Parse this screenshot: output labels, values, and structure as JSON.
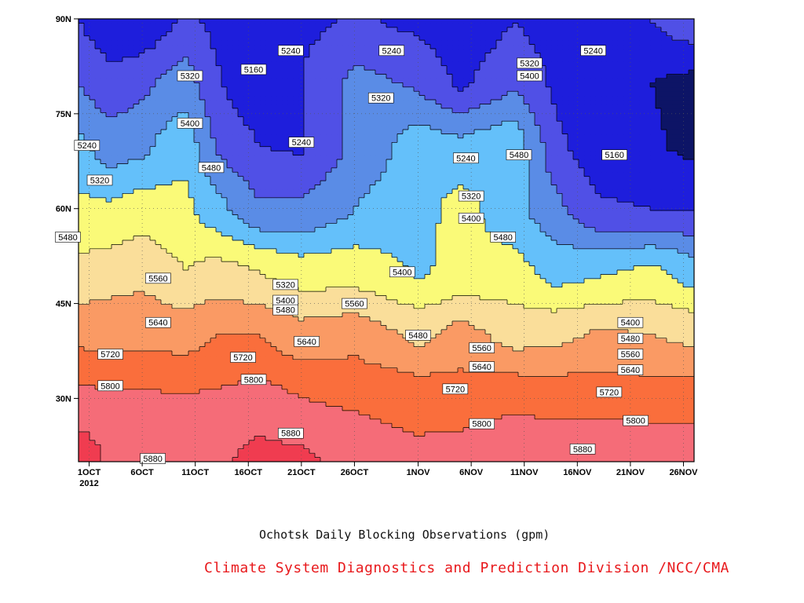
{
  "chart_data": {
    "type": "heatmap",
    "title": "Ochotsk Daily Blocking Observations (gpm)",
    "credit": "Climate System Diagnostics and Prediction Division /NCC/CMA",
    "credit_color": "#e8191c",
    "y_ticks": [
      "30N",
      "45N",
      "60N",
      "75N",
      "90N"
    ],
    "y_tick_values": [
      30,
      45,
      60,
      75,
      90
    ],
    "ylim": [
      20,
      90
    ],
    "x_ticks": [
      {
        "label": "1OCT",
        "sub": "2012",
        "day": 1
      },
      {
        "label": "6OCT",
        "sub": "",
        "day": 6
      },
      {
        "label": "11OCT",
        "sub": "",
        "day": 11
      },
      {
        "label": "16OCT",
        "sub": "",
        "day": 16
      },
      {
        "label": "21OCT",
        "sub": "",
        "day": 21
      },
      {
        "label": "26OCT",
        "sub": "",
        "day": 26
      },
      {
        "label": "1NOV",
        "sub": "",
        "day": 32
      },
      {
        "label": "6NOV",
        "sub": "",
        "day": 37
      },
      {
        "label": "11NOV",
        "sub": "",
        "day": 42
      },
      {
        "label": "16NOV",
        "sub": "",
        "day": 47
      },
      {
        "label": "21NOV",
        "sub": "",
        "day": 52
      },
      {
        "label": "26NOV",
        "sub": "",
        "day": 57
      }
    ],
    "xlim": [
      0,
      58
    ],
    "grid": true,
    "levels": [
      5160,
      5240,
      5320,
      5400,
      5480,
      5560,
      5640,
      5720,
      5800,
      5880
    ],
    "level_colors": [
      "#0d1466",
      "#1e1edc",
      "#5050e6",
      "#5a8ce6",
      "#64c0fa",
      "#fafa78",
      "#fade9a",
      "#fa9a64",
      "#fa6e3c",
      "#f56c78",
      "#f03c50"
    ],
    "field": [
      {
        "day": 0,
        "profile": [
          5950,
          5820,
          5700,
          5580,
          5500,
          5420,
          5320,
          5240
        ]
      },
      {
        "day": 3,
        "profile": [
          5860,
          5810,
          5700,
          5600,
          5490,
          5360,
          5260,
          5180
        ]
      },
      {
        "day": 6,
        "profile": [
          5880,
          5810,
          5700,
          5620,
          5520,
          5380,
          5300,
          5160
        ]
      },
      {
        "day": 10,
        "profile": [
          5850,
          5805,
          5690,
          5560,
          5500,
          5460,
          5360,
          5260
        ]
      },
      {
        "day": 13,
        "profile": [
          5860,
          5810,
          5720,
          5590,
          5430,
          5310,
          5250,
          5220
        ]
      },
      {
        "day": 17,
        "profile": [
          5910,
          5830,
          5720,
          5560,
          5330,
          5240,
          5170,
          5230
        ]
      },
      {
        "day": 21,
        "profile": [
          5900,
          5800,
          5670,
          5520,
          5330,
          5230,
          5240,
          5220
        ]
      },
      {
        "day": 26,
        "profile": [
          5850,
          5790,
          5690,
          5530,
          5400,
          5340,
          5340,
          5250
        ]
      },
      {
        "day": 32,
        "profile": [
          5820,
          5770,
          5620,
          5470,
          5450,
          5440,
          5310,
          5220
        ]
      },
      {
        "day": 36,
        "profile": [
          5840,
          5760,
          5670,
          5500,
          5510,
          5420,
          5220,
          5170
        ]
      },
      {
        "day": 41,
        "profile": [
          5880,
          5780,
          5610,
          5510,
          5430,
          5460,
          5310,
          5240
        ]
      },
      {
        "day": 45,
        "profile": [
          5870,
          5770,
          5620,
          5450,
          5340,
          5260,
          5220,
          5200
        ]
      },
      {
        "day": 49,
        "profile": [
          5870,
          5770,
          5650,
          5470,
          5250,
          5190,
          5170,
          5180
        ]
      },
      {
        "day": 54,
        "profile": [
          5880,
          5760,
          5640,
          5500,
          5240,
          5170,
          5160,
          5240
        ]
      },
      {
        "day": 58,
        "profile": [
          5870,
          5760,
          5620,
          5440,
          5240,
          5140,
          5140,
          5300
        ]
      }
    ],
    "field_lats": [
      20,
      30,
      40,
      50,
      60,
      70,
      80,
      90
    ],
    "contour_labels": [
      {
        "text": "5240",
        "day": 20,
        "lat": 85
      },
      {
        "text": "5160",
        "day": 16.5,
        "lat": 82
      },
      {
        "text": "5320",
        "day": 10.5,
        "lat": 81
      },
      {
        "text": "5240",
        "day": 0.8,
        "lat": 70
      },
      {
        "text": "5400",
        "day": 10.5,
        "lat": 73.5
      },
      {
        "text": "5240",
        "day": 21,
        "lat": 70.5
      },
      {
        "text": "5320",
        "day": 2,
        "lat": 64.5
      },
      {
        "text": "5480",
        "day": 12.5,
        "lat": 66.5
      },
      {
        "text": "5480",
        "day": -1,
        "lat": 55.5
      },
      {
        "text": "5560",
        "day": 7.5,
        "lat": 49
      },
      {
        "text": "5640",
        "day": 7.5,
        "lat": 42
      },
      {
        "text": "5720",
        "day": 3,
        "lat": 37
      },
      {
        "text": "5720",
        "day": 15.5,
        "lat": 36.5
      },
      {
        "text": "5800",
        "day": 3,
        "lat": 32
      },
      {
        "text": "5800",
        "day": 16.5,
        "lat": 33
      },
      {
        "text": "5640",
        "day": 21.5,
        "lat": 39
      },
      {
        "text": "5880",
        "day": 20,
        "lat": 24.5
      },
      {
        "text": "5880",
        "day": 7,
        "lat": 20.5
      },
      {
        "text": "5240",
        "day": 29.5,
        "lat": 85
      },
      {
        "text": "5320",
        "day": 28.5,
        "lat": 77.5
      },
      {
        "text": "5320",
        "day": 19.5,
        "lat": 48
      },
      {
        "text": "5400",
        "day": 19.5,
        "lat": 45.5
      },
      {
        "text": "5480",
        "day": 19.5,
        "lat": 44
      },
      {
        "text": "5560",
        "day": 26,
        "lat": 45
      },
      {
        "text": "5400",
        "day": 30.5,
        "lat": 50
      },
      {
        "text": "5480",
        "day": 32,
        "lat": 40
      },
      {
        "text": "5240",
        "day": 36.5,
        "lat": 68
      },
      {
        "text": "5320",
        "day": 37,
        "lat": 62
      },
      {
        "text": "5400",
        "day": 37,
        "lat": 58.5
      },
      {
        "text": "5480",
        "day": 40,
        "lat": 55.5
      },
      {
        "text": "5560",
        "day": 38,
        "lat": 38
      },
      {
        "text": "5640",
        "day": 38,
        "lat": 35
      },
      {
        "text": "5720",
        "day": 35.5,
        "lat": 31.5
      },
      {
        "text": "5800",
        "day": 38,
        "lat": 26
      },
      {
        "text": "5320",
        "day": 42.5,
        "lat": 83
      },
      {
        "text": "5400",
        "day": 42.5,
        "lat": 81
      },
      {
        "text": "5480",
        "day": 41.5,
        "lat": 68.5
      },
      {
        "text": "5240",
        "day": 48.5,
        "lat": 85
      },
      {
        "text": "5160",
        "day": 50.5,
        "lat": 68.5
      },
      {
        "text": "5400",
        "day": 52,
        "lat": 42
      },
      {
        "text": "5480",
        "day": 52,
        "lat": 39.5
      },
      {
        "text": "5560",
        "day": 52,
        "lat": 37
      },
      {
        "text": "5640",
        "day": 52,
        "lat": 34.5
      },
      {
        "text": "5720",
        "day": 50,
        "lat": 31
      },
      {
        "text": "5800",
        "day": 52.5,
        "lat": 26.5
      },
      {
        "text": "5880",
        "day": 47.5,
        "lat": 22
      }
    ]
  }
}
